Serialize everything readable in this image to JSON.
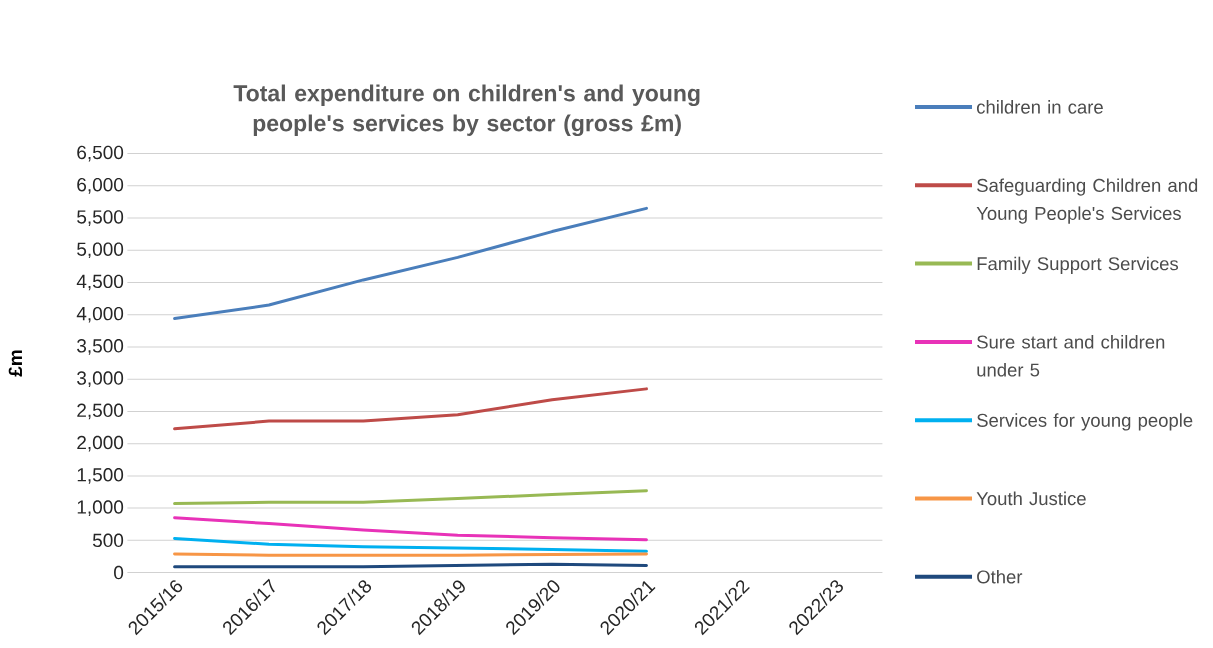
{
  "chart_data": {
    "type": "line",
    "title": "Total expenditure on children's and young people's services by sector (gross £m)",
    "ylabel": "£m",
    "categories": [
      "2015/16",
      "2016/17",
      "2017/18",
      "2018/19",
      "2019/20",
      "2020/21",
      "2021/22",
      "2022/23"
    ],
    "ylim": [
      0,
      6500
    ],
    "yticks": [
      0,
      {
        "value": 500,
        "label": "500"
      },
      {
        "value": 1000,
        "label": "1,000"
      },
      {
        "value": 1500,
        "label": "1,500"
      },
      {
        "value": 2000,
        "label": "2,000"
      },
      {
        "value": 2500,
        "label": "2,500"
      },
      {
        "value": 3000,
        "label": "3,000"
      },
      {
        "value": 3500,
        "label": "3,500"
      },
      {
        "value": 4000,
        "label": "4,000"
      },
      {
        "value": 4500,
        "label": "4,500"
      },
      {
        "value": 5000,
        "label": "5,000"
      },
      {
        "value": 5500,
        "label": "5,500"
      },
      {
        "value": 6000,
        "label": "6,000"
      },
      {
        "value": 6500,
        "label": "6,500"
      }
    ],
    "grid": "y",
    "legend": "right",
    "marker": "none",
    "line_style": "solid",
    "series": [
      {
        "name": "children in care",
        "color": "#4a7ebb",
        "values": [
          3940,
          4150,
          4540,
          4890,
          5290,
          5650,
          null,
          null
        ]
      },
      {
        "name": "Safeguarding Children and Young People's Services",
        "color": "#be4b48",
        "values": [
          2230,
          2350,
          2350,
          2450,
          2680,
          2850,
          null,
          null
        ]
      },
      {
        "name": "Family Support Services",
        "color": "#98b954",
        "values": [
          1070,
          1090,
          1090,
          1150,
          1210,
          1270,
          null,
          null
        ]
      },
      {
        "name": "Sure start and children under 5",
        "color": "#e832b8",
        "values": [
          850,
          760,
          660,
          580,
          540,
          510,
          null,
          null
        ]
      },
      {
        "name": "Services for young people",
        "color": "#00b0f0",
        "values": [
          530,
          440,
          400,
          380,
          360,
          330,
          null,
          null
        ]
      },
      {
        "name": "Youth Justice",
        "color": "#f79646",
        "values": [
          290,
          270,
          270,
          270,
          280,
          290,
          null,
          null
        ]
      },
      {
        "name": "Other",
        "color": "#1f497d",
        "values": [
          90,
          90,
          90,
          110,
          130,
          110,
          null,
          null
        ]
      }
    ]
  }
}
